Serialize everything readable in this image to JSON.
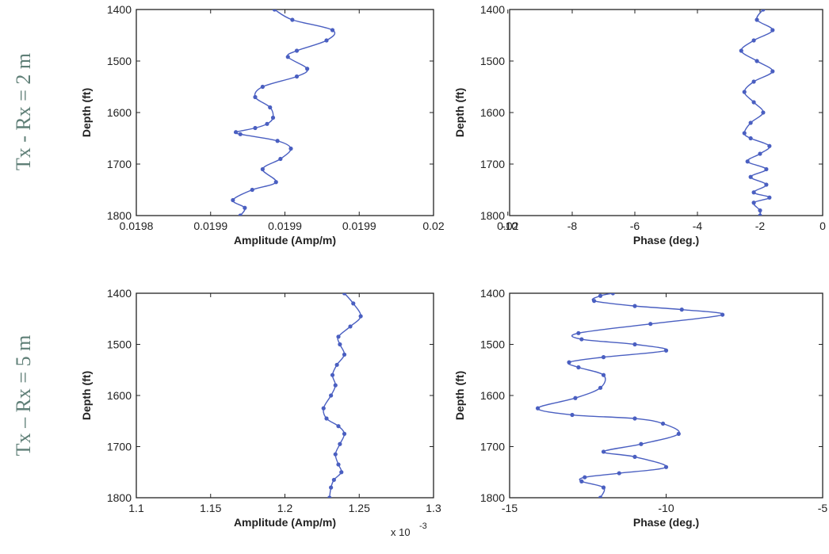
{
  "row_titles": {
    "top": "Tx - Rx = 2 m",
    "bottom": "Tx – Rx = 5 m"
  },
  "chart_data": [
    {
      "type": "line",
      "title": "",
      "xlabel": "Amplitude (Amp/m)",
      "ylabel": "Depth (ft)",
      "xlim": [
        0.0198,
        0.02
      ],
      "ylim": [
        1400,
        1800
      ],
      "y_reversed": true,
      "x_ticks": [
        0.0198,
        0.01985,
        0.0199,
        0.01995,
        0.02,
        0.02005
      ],
      "x_tick_labels": [
        "0.0198",
        "0.0199",
        "0.0199",
        "0.0199",
        "0.02",
        "0.02"
      ],
      "y_ticks": [
        1400,
        1500,
        1600,
        1700,
        1800
      ],
      "y_tick_labels": [
        "1400",
        "1500",
        "1600",
        "1700",
        "1800"
      ],
      "x_exponent_label": "",
      "color": "#4a5fc1",
      "series": [
        {
          "x": [
            0.019893,
            0.019905,
            0.019932,
            0.019928,
            0.019908,
            0.019902,
            0.019915,
            0.019908,
            0.019885,
            0.01988,
            0.01989,
            0.019892,
            0.019888,
            0.01988,
            0.019867,
            0.01987,
            0.019895,
            0.019904,
            0.019897,
            0.019885,
            0.019894,
            0.019878,
            0.019865,
            0.019873,
            0.01987
          ],
          "y": [
            1400,
            1420,
            1440,
            1460,
            1480,
            1492,
            1515,
            1530,
            1550,
            1570,
            1590,
            1610,
            1622,
            1630,
            1638,
            1642,
            1655,
            1670,
            1690,
            1710,
            1735,
            1750,
            1770,
            1785,
            1800
          ]
        }
      ]
    },
    {
      "type": "line",
      "title": "",
      "xlabel": "Phase (deg.)",
      "ylabel": "Depth (ft)",
      "xlim": [
        -10,
        0
      ],
      "ylim": [
        1400,
        1800
      ],
      "y_reversed": true,
      "x_ticks": [
        -10,
        -8,
        -6,
        -4,
        -2,
        0
      ],
      "x_tick_labels": [
        "-10",
        "-8",
        "-6",
        "-4",
        "-2",
        "0"
      ],
      "y_ticks": [
        1400,
        1500,
        1600,
        1700,
        1800
      ],
      "y_tick_labels": [
        "1400",
        "1500",
        "1600",
        "1700",
        "1800"
      ],
      "x_exponent_label": "",
      "color": "#4a5fc1",
      "series": [
        {
          "x": [
            -1.9,
            -2.1,
            -1.6,
            -2.2,
            -2.6,
            -2.1,
            -1.6,
            -2.2,
            -2.5,
            -2.2,
            -1.9,
            -2.3,
            -2.5,
            -2.3,
            -1.7,
            -2.0,
            -2.4,
            -1.8,
            -2.3,
            -1.8,
            -2.2,
            -1.7,
            -2.2,
            -2.0,
            -2.0
          ],
          "y": [
            1400,
            1420,
            1440,
            1460,
            1480,
            1500,
            1520,
            1540,
            1560,
            1580,
            1600,
            1620,
            1640,
            1650,
            1665,
            1680,
            1695,
            1710,
            1725,
            1740,
            1755,
            1765,
            1775,
            1790,
            1800
          ]
        }
      ]
    },
    {
      "type": "line",
      "title": "",
      "xlabel": "Amplitude (Amp/m)",
      "ylabel": "Depth (ft)",
      "xlim": [
        1.1,
        1.3
      ],
      "ylim": [
        1400,
        1800
      ],
      "y_reversed": true,
      "x_ticks": [
        1.1,
        1.15,
        1.2,
        1.25,
        1.3
      ],
      "x_tick_labels": [
        "1.1",
        "1.15",
        "1.2",
        "1.25",
        "1.3"
      ],
      "y_ticks": [
        1400,
        1500,
        1600,
        1700,
        1800
      ],
      "y_tick_labels": [
        "1400",
        "1500",
        "1600",
        "1700",
        "1800"
      ],
      "x_exponent_label": "x 10",
      "x_exponent_power": "-3",
      "color": "#4a5fc1",
      "series": [
        {
          "x": [
            1.24,
            1.246,
            1.251,
            1.244,
            1.236,
            1.237,
            1.24,
            1.235,
            1.232,
            1.234,
            1.231,
            1.226,
            1.228,
            1.236,
            1.24,
            1.237,
            1.234,
            1.236,
            1.238,
            1.233,
            1.231,
            1.23
          ],
          "y": [
            1400,
            1420,
            1445,
            1465,
            1485,
            1500,
            1520,
            1540,
            1560,
            1580,
            1600,
            1625,
            1645,
            1660,
            1675,
            1695,
            1715,
            1735,
            1750,
            1765,
            1780,
            1800
          ]
        }
      ]
    },
    {
      "type": "line",
      "title": "",
      "xlabel": "Phase (deg.)",
      "ylabel": "Depth (ft)",
      "xlim": [
        -15,
        -5
      ],
      "ylim": [
        1400,
        1800
      ],
      "y_reversed": true,
      "x_ticks": [
        -15,
        -10,
        -5
      ],
      "x_tick_labels": [
        "-15",
        "-10",
        "-5"
      ],
      "y_ticks": [
        1400,
        1500,
        1600,
        1700,
        1800
      ],
      "y_tick_labels": [
        "1400",
        "1500",
        "1600",
        "1700",
        "1800"
      ],
      "x_exponent_label": "",
      "color": "#4a5fc1",
      "series": [
        {
          "x": [
            -11.7,
            -12.1,
            -12.3,
            -11.0,
            -9.5,
            -8.2,
            -10.5,
            -12.8,
            -12.7,
            -11.0,
            -10.0,
            -12.0,
            -13.1,
            -12.8,
            -12.0,
            -12.1,
            -12.9,
            -14.1,
            -13.0,
            -11.0,
            -10.1,
            -9.6,
            -10.8,
            -12.0,
            -11.0,
            -10.0,
            -11.5,
            -12.6,
            -12.7,
            -12.0,
            -12.1
          ],
          "y": [
            1400,
            1405,
            1415,
            1425,
            1432,
            1442,
            1460,
            1478,
            1490,
            1500,
            1512,
            1525,
            1535,
            1545,
            1560,
            1585,
            1605,
            1625,
            1638,
            1645,
            1655,
            1675,
            1695,
            1710,
            1720,
            1740,
            1752,
            1760,
            1768,
            1780,
            1800
          ]
        }
      ]
    }
  ]
}
